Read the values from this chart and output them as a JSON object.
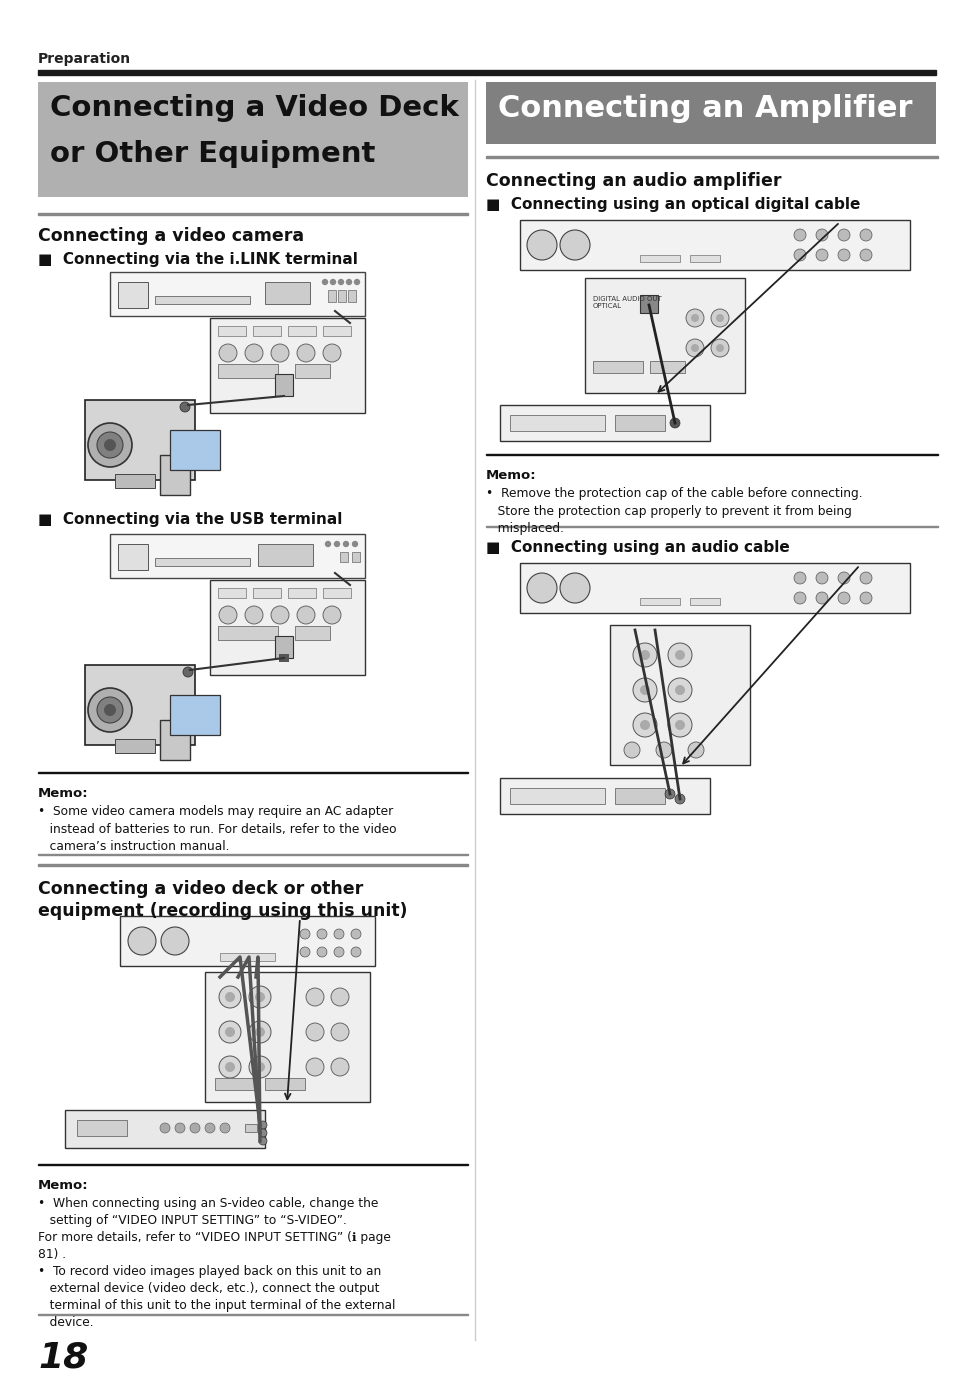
{
  "bg_color": "#ffffff",
  "page_number": "18",
  "top_label": "Preparation",
  "left_title_line1": "Connecting a Video Deck",
  "left_title_line2": "or Other Equipment",
  "right_title": "Connecting an Amplifier",
  "left_title_bg": "#b0b0b0",
  "right_title_bg": "#808080",
  "right_title_color": "#ffffff",
  "section1_heading": "Connecting a video camera",
  "section1_sub1": "■  Connecting via the i.LINK terminal",
  "section1_sub2": "■  Connecting via the USB terminal",
  "section1_memo_title": "Memo:",
  "section1_memo_text": "•  Some video camera models may require an AC adapter\n   instead of batteries to run. For details, refer to the video\n   camera’s instruction manual.",
  "section2_heading": "Connecting a video deck or other\nequipment (recording using this unit)",
  "section2_memo_title": "Memo:",
  "section2_memo_text": "•  When connecting using an S-video cable, change the\n   setting of “VIDEO INPUT SETTING” to “S-VIDEO”.\nFor more details, refer to “VIDEO INPUT SETTING” (ℹ page\n81) .\n•  To record video images played back on this unit to an\n   external device (video deck, etc.), connect the output\n   terminal of this unit to the input terminal of the external\n   device.",
  "right_section1_heading": "Connecting an audio amplifier",
  "right_section1_sub1": "■  Connecting using an optical digital cable",
  "right_section1_memo_title": "Memo:",
  "right_section1_memo_text": "•  Remove the protection cap of the cable before connecting.\n   Store the protection cap properly to prevent it from being\n   misplaced.",
  "right_section1_sub2": "■  Connecting using an audio cable"
}
